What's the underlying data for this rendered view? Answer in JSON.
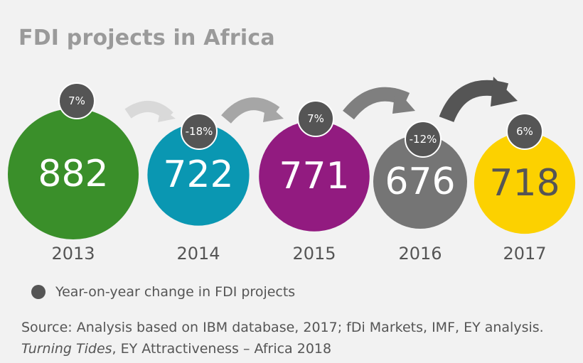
{
  "title": "FDI projects in Africa",
  "chart_data": {
    "type": "bubble",
    "categories": [
      "2013",
      "2014",
      "2015",
      "2016",
      "2017"
    ],
    "values": [
      882,
      722,
      771,
      676,
      718
    ],
    "changes": [
      "7%",
      "-18%",
      "7%",
      "-12%",
      "6%"
    ],
    "colors": [
      "#3a8f2a",
      "#0a97b2",
      "#921b80",
      "#757575",
      "#fcd100"
    ],
    "value_text_colors": [
      "#ffffff",
      "#ffffff",
      "#ffffff",
      "#ffffff",
      "#555555"
    ],
    "change_badge_color": "#555555"
  },
  "legend": {
    "label": "Year-on-year change in FDI projects"
  },
  "source": {
    "line1": "Source: Analysis based on IBM database, 2017; fDi Markets, IMF, EY analysis.",
    "line2_italic": "Turning Tides",
    "line2_rest": ", EY Attractiveness – Africa 2018"
  }
}
